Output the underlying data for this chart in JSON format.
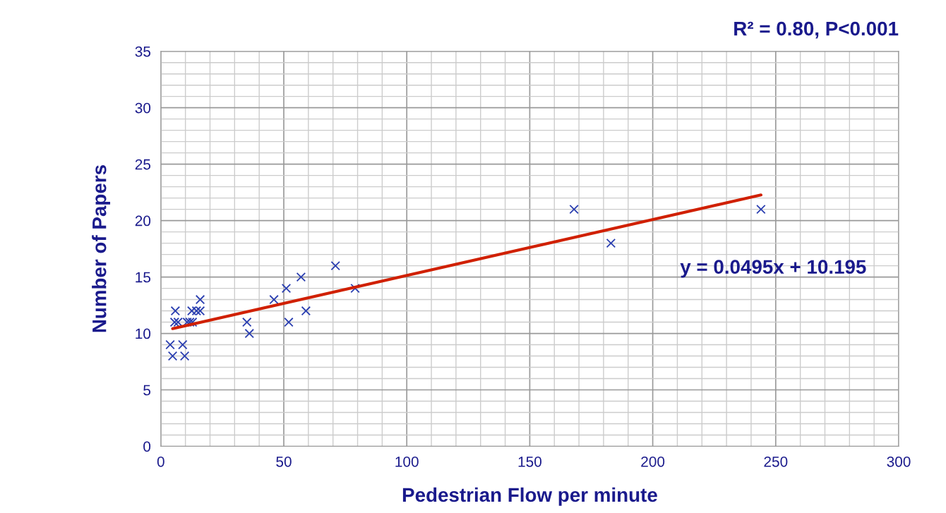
{
  "chart_data": {
    "type": "scatter",
    "xlabel": "Pedestrian Flow per minute",
    "ylabel": "Number of Papers",
    "annotations": [
      "R² = 0.80, P<0.001",
      "y = 0.0495x + 10.195"
    ],
    "xlim": [
      0,
      300
    ],
    "xticks": [
      0,
      50,
      100,
      150,
      200,
      250,
      300
    ],
    "ylim": [
      0,
      35
    ],
    "yticks": [
      0,
      5,
      10,
      15,
      20,
      25,
      30,
      35
    ],
    "grid": true,
    "marker": "cross",
    "series": [
      {
        "color": "#2b3fb0",
        "x": [
          3.8,
          4.8,
          5.9,
          5.6,
          7,
          8.9,
          9.7,
          10.7,
          11.8,
          12.9,
          12.6,
          14.5,
          16,
          16,
          35,
          36,
          46,
          51,
          52,
          57,
          59,
          71,
          79,
          168,
          183,
          244
        ],
        "values": [
          9,
          8,
          12,
          11,
          11,
          9,
          8,
          11,
          11,
          11,
          12,
          12,
          13,
          12,
          11,
          10,
          13,
          14,
          11,
          15,
          12,
          16,
          14,
          21,
          18,
          21
        ]
      },
      {
        "type": "line",
        "color": "#d02000",
        "line_style": "solid",
        "marker": "none",
        "x": [
          4.8,
          244
        ],
        "values": [
          10.43,
          22.27
        ]
      }
    ]
  }
}
